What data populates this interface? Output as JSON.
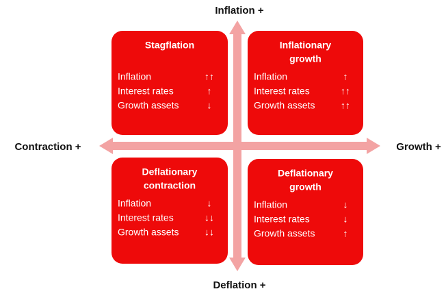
{
  "axes": {
    "top": "Inflation +",
    "bottom": "Deflation +",
    "left": "Contraction +",
    "right": "Growth +"
  },
  "quadrants": [
    {
      "title": [
        "Stagflation"
      ],
      "rows": [
        [
          "Inflation",
          "↑↑"
        ],
        [
          "Interest rates",
          "↑"
        ],
        [
          "Growth assets",
          "↓"
        ]
      ]
    },
    {
      "title": [
        "Inflationary",
        "growth"
      ],
      "rows": [
        [
          "Inflation",
          "↑"
        ],
        [
          "Interest rates",
          "↑↑"
        ],
        [
          "Growth assets",
          "↑↑"
        ]
      ]
    },
    {
      "title": [
        "Deflationary",
        "contraction"
      ],
      "rows": [
        [
          "Inflation",
          "↓"
        ],
        [
          "Interest rates",
          "↓↓"
        ],
        [
          "Growth assets",
          "↓↓"
        ]
      ]
    },
    {
      "title": [
        "Deflationary",
        "growth"
      ],
      "rows": [
        [
          "Inflation",
          "↓"
        ],
        [
          "Interest rates",
          "↓"
        ],
        [
          "Growth assets",
          "↑"
        ]
      ]
    }
  ]
}
